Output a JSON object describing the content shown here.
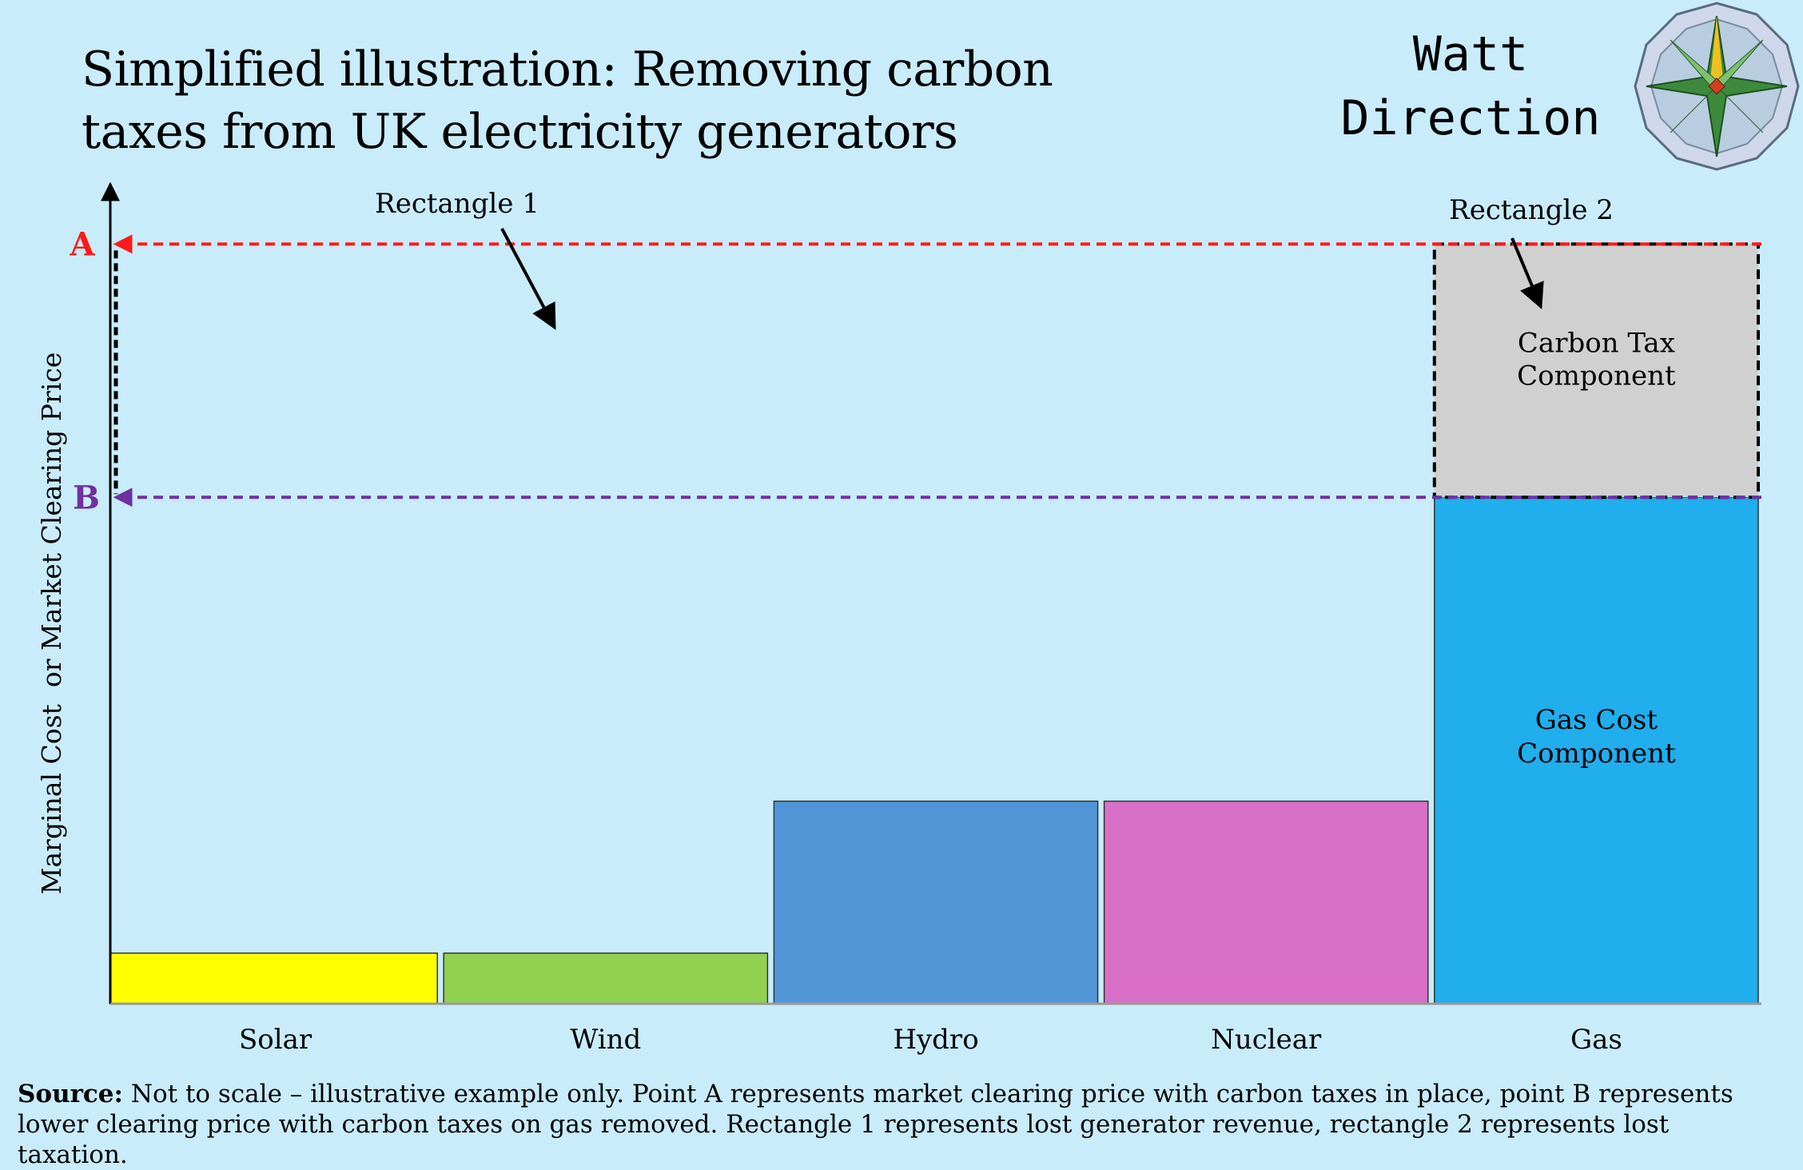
{
  "title_line1": "Simplified illustration: Removing carbon",
  "title_line2": "taxes from UK electricity generators",
  "brand_line1": "Watt",
  "brand_line2": "Direction",
  "chart_data": {
    "type": "bar",
    "categories": [
      "Solar",
      "Wind",
      "Hydro",
      "Nuclear",
      "Gas"
    ],
    "values": [
      1,
      1,
      4,
      4,
      10
    ],
    "stacked_components": [
      {
        "category": "Gas",
        "label": "Gas Cost Component",
        "value": 10
      },
      {
        "category": "Gas",
        "label": "Carbon Tax Component",
        "value": 5
      }
    ],
    "ylabel": "Marginal Cost  or Market Clearing Price",
    "xlabel": "",
    "ylim": [
      0,
      16
    ],
    "price_levels": [
      {
        "label": "A",
        "value": 15,
        "color": "#ff1a1a"
      },
      {
        "label": "B",
        "value": 10,
        "color": "#7030a0"
      }
    ],
    "annotations": [
      "Rectangle 1",
      "Rectangle 2"
    ],
    "colors": {
      "Solar": "#ffff00",
      "Wind": "#92d050",
      "Hydro": "#5096d7",
      "Nuclear": "#d870c8",
      "Gas": "#20aeec",
      "Carbon Tax": "#d0d0d0"
    },
    "grid": false
  },
  "source_label": "Source:",
  "source_text": " Not to scale – illustrative example only. Point A represents market clearing price with carbon taxes in place, point B represents lower clearing price with carbon taxes on gas  removed.  Rectangle 1 represents lost generator revenue, rectangle 2 represents lost taxation."
}
